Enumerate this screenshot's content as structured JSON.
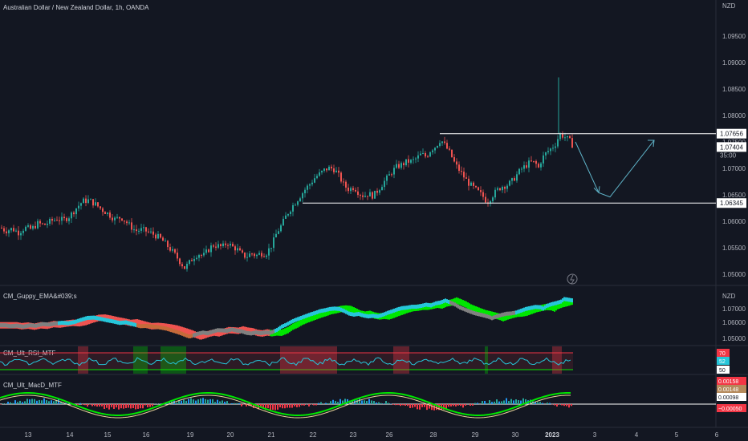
{
  "header": {
    "symbol_title": "Australian Dollar / New Zealand Dollar, 1h, OANDA"
  },
  "colors": {
    "bg": "#131722",
    "up": "#26a69a",
    "down": "#ef5350",
    "grid": "#1e222d",
    "text": "#b2b5be",
    "white": "#ffffff",
    "arrow": "#5fb3c8"
  },
  "price_axis": {
    "currency": "NZD",
    "ticks": [
      "1.09500",
      "1.09000",
      "1.08500",
      "1.08000",
      "1.07500",
      "1.07000",
      "1.06500",
      "1.06000",
      "1.05500",
      "1.05000"
    ],
    "tags": [
      {
        "text": "1.07656",
        "style": "white"
      },
      {
        "text": "1.07404",
        "style": "white"
      },
      {
        "text": "35:00",
        "style": "plain"
      },
      {
        "text": "1.06345",
        "style": "white"
      }
    ]
  },
  "time_axis": {
    "ticks": [
      "13",
      "14",
      "15",
      "16",
      "19",
      "20",
      "21",
      "22",
      "23",
      "26",
      "28",
      "29",
      "30",
      "2023",
      "3",
      "4",
      "5",
      "6"
    ]
  },
  "indicators": {
    "guppy": {
      "name": "CM_Guppy_EMA&#039;s",
      "currency": "NZD",
      "ticks": [
        "1.07000",
        "1.06000",
        "1.05000"
      ]
    },
    "rsi": {
      "name": "CM_Ult_RSI_MTF",
      "tags": [
        {
          "text": "70",
          "color": "#f23645"
        },
        {
          "text": "52",
          "color": "#26c6da"
        },
        {
          "text": "50",
          "color": "#ffffff"
        }
      ]
    },
    "macd": {
      "name": "CM_Ult_MacD_MTF",
      "tags": [
        {
          "text": "0.00158",
          "color": "#f23645"
        },
        {
          "text": "0.00148",
          "color": "#b58a5c"
        },
        {
          "text": "0.00098",
          "color": "#ffffff"
        },
        {
          "text": "−0.00050",
          "color": "#f23645"
        }
      ]
    }
  },
  "chart_data": {
    "type": "candlestick",
    "title": "Australian Dollar / New Zealand Dollar, 1h, OANDA",
    "ylim": [
      1.0495,
      1.0955
    ],
    "y_ticks": [
      1.095,
      1.09,
      1.085,
      1.08,
      1.075,
      1.07,
      1.065,
      1.06,
      1.055,
      1.05
    ],
    "close_path": [
      [
        0,
        1.0588
      ],
      [
        6,
        1.0582
      ],
      [
        14,
        1.0586
      ],
      [
        22,
        1.0579
      ],
      [
        30,
        1.0588
      ],
      [
        38,
        1.0585
      ],
      [
        46,
        1.0596
      ],
      [
        54,
        1.0593
      ],
      [
        62,
        1.06
      ],
      [
        70,
        1.0605
      ],
      [
        78,
        1.0602
      ],
      [
        86,
        1.061
      ],
      [
        94,
        1.0625
      ],
      [
        102,
        1.0638
      ],
      [
        110,
        1.064
      ],
      [
        118,
        1.0632
      ],
      [
        126,
        1.0622
      ],
      [
        134,
        1.0614
      ],
      [
        142,
        1.0604
      ],
      [
        150,
        1.0608
      ],
      [
        156,
        1.0599
      ],
      [
        162,
        1.059
      ],
      [
        168,
        1.0582
      ],
      [
        176,
        1.0584
      ],
      [
        184,
        1.058
      ],
      [
        192,
        1.0574
      ],
      [
        200,
        1.0566
      ],
      [
        206,
        1.0556
      ],
      [
        212,
        1.0546
      ],
      [
        218,
        1.0535
      ],
      [
        224,
        1.0522
      ],
      [
        229,
        1.0512
      ],
      [
        234,
        1.052
      ],
      [
        240,
        1.0532
      ],
      [
        246,
        1.0539
      ],
      [
        252,
        1.0534
      ],
      [
        258,
        1.0545
      ],
      [
        264,
        1.0555
      ],
      [
        270,
        1.0554
      ],
      [
        276,
        1.0551
      ],
      [
        282,
        1.056
      ],
      [
        288,
        1.0552
      ],
      [
        294,
        1.0548
      ],
      [
        300,
        1.0537
      ],
      [
        306,
        1.0533
      ],
      [
        312,
        1.054
      ],
      [
        318,
        1.0535
      ],
      [
        324,
        1.054
      ],
      [
        330,
        1.0538
      ],
      [
        338,
        1.0556
      ],
      [
        344,
        1.0579
      ],
      [
        350,
        1.0593
      ],
      [
        356,
        1.0612
      ],
      [
        362,
        1.0626
      ],
      [
        368,
        1.0638
      ],
      [
        374,
        1.065
      ],
      [
        380,
        1.0662
      ],
      [
        386,
        1.0672
      ],
      [
        392,
        1.0684
      ],
      [
        398,
        1.069
      ],
      [
        404,
        1.0698
      ],
      [
        410,
        1.0701
      ],
      [
        416,
        1.0698
      ],
      [
        422,
        1.0684
      ],
      [
        428,
        1.0667
      ],
      [
        434,
        1.066
      ],
      [
        440,
        1.0665
      ],
      [
        446,
        1.0654
      ],
      [
        452,
        1.0648
      ],
      [
        458,
        1.0652
      ],
      [
        464,
        1.0648
      ],
      [
        470,
        1.0659
      ],
      [
        476,
        1.0672
      ],
      [
        482,
        1.0683
      ],
      [
        488,
        1.0695
      ],
      [
        494,
        1.0704
      ],
      [
        500,
        1.0707
      ],
      [
        506,
        1.0713
      ],
      [
        512,
        1.0713
      ],
      [
        518,
        1.0719
      ],
      [
        524,
        1.0727
      ],
      [
        530,
        1.0722
      ],
      [
        536,
        1.0736
      ],
      [
        542,
        1.0742
      ],
      [
        548,
        1.0755
      ],
      [
        554,
        1.0742
      ],
      [
        560,
        1.0728
      ],
      [
        566,
        1.0708
      ],
      [
        572,
        1.0695
      ],
      [
        578,
        1.0682
      ],
      [
        584,
        1.067
      ],
      [
        590,
        1.0662
      ],
      [
        596,
        1.0654
      ],
      [
        602,
        1.0645
      ],
      [
        606,
        1.0636
      ],
      [
        612,
        1.0648
      ],
      [
        618,
        1.0658
      ],
      [
        624,
        1.0666
      ],
      [
        630,
        1.0668
      ],
      [
        636,
        1.0674
      ],
      [
        642,
        1.0686
      ],
      [
        648,
        1.0698
      ],
      [
        654,
        1.0705
      ],
      [
        660,
        1.0712
      ],
      [
        666,
        1.071
      ],
      [
        670,
        1.0701
      ],
      [
        674,
        1.0718
      ],
      [
        680,
        1.073
      ],
      [
        686,
        1.0738
      ],
      [
        692,
        1.0748
      ],
      [
        696,
        1.0765
      ],
      [
        700,
        1.0762
      ],
      [
        704,
        1.0758
      ],
      [
        708,
        1.0754
      ],
      [
        714,
        1.074
      ]
    ],
    "spike": {
      "x": 696,
      "high": 1.0872
    },
    "levels": [
      {
        "price": 1.07656,
        "x_start": 548
      },
      {
        "price": 1.06345,
        "x_start": 377
      }
    ],
    "projection": [
      [
        717,
        1.075
      ],
      [
        746,
        1.0654
      ],
      [
        760,
        1.0646
      ],
      [
        815,
        1.0753
      ]
    ]
  }
}
